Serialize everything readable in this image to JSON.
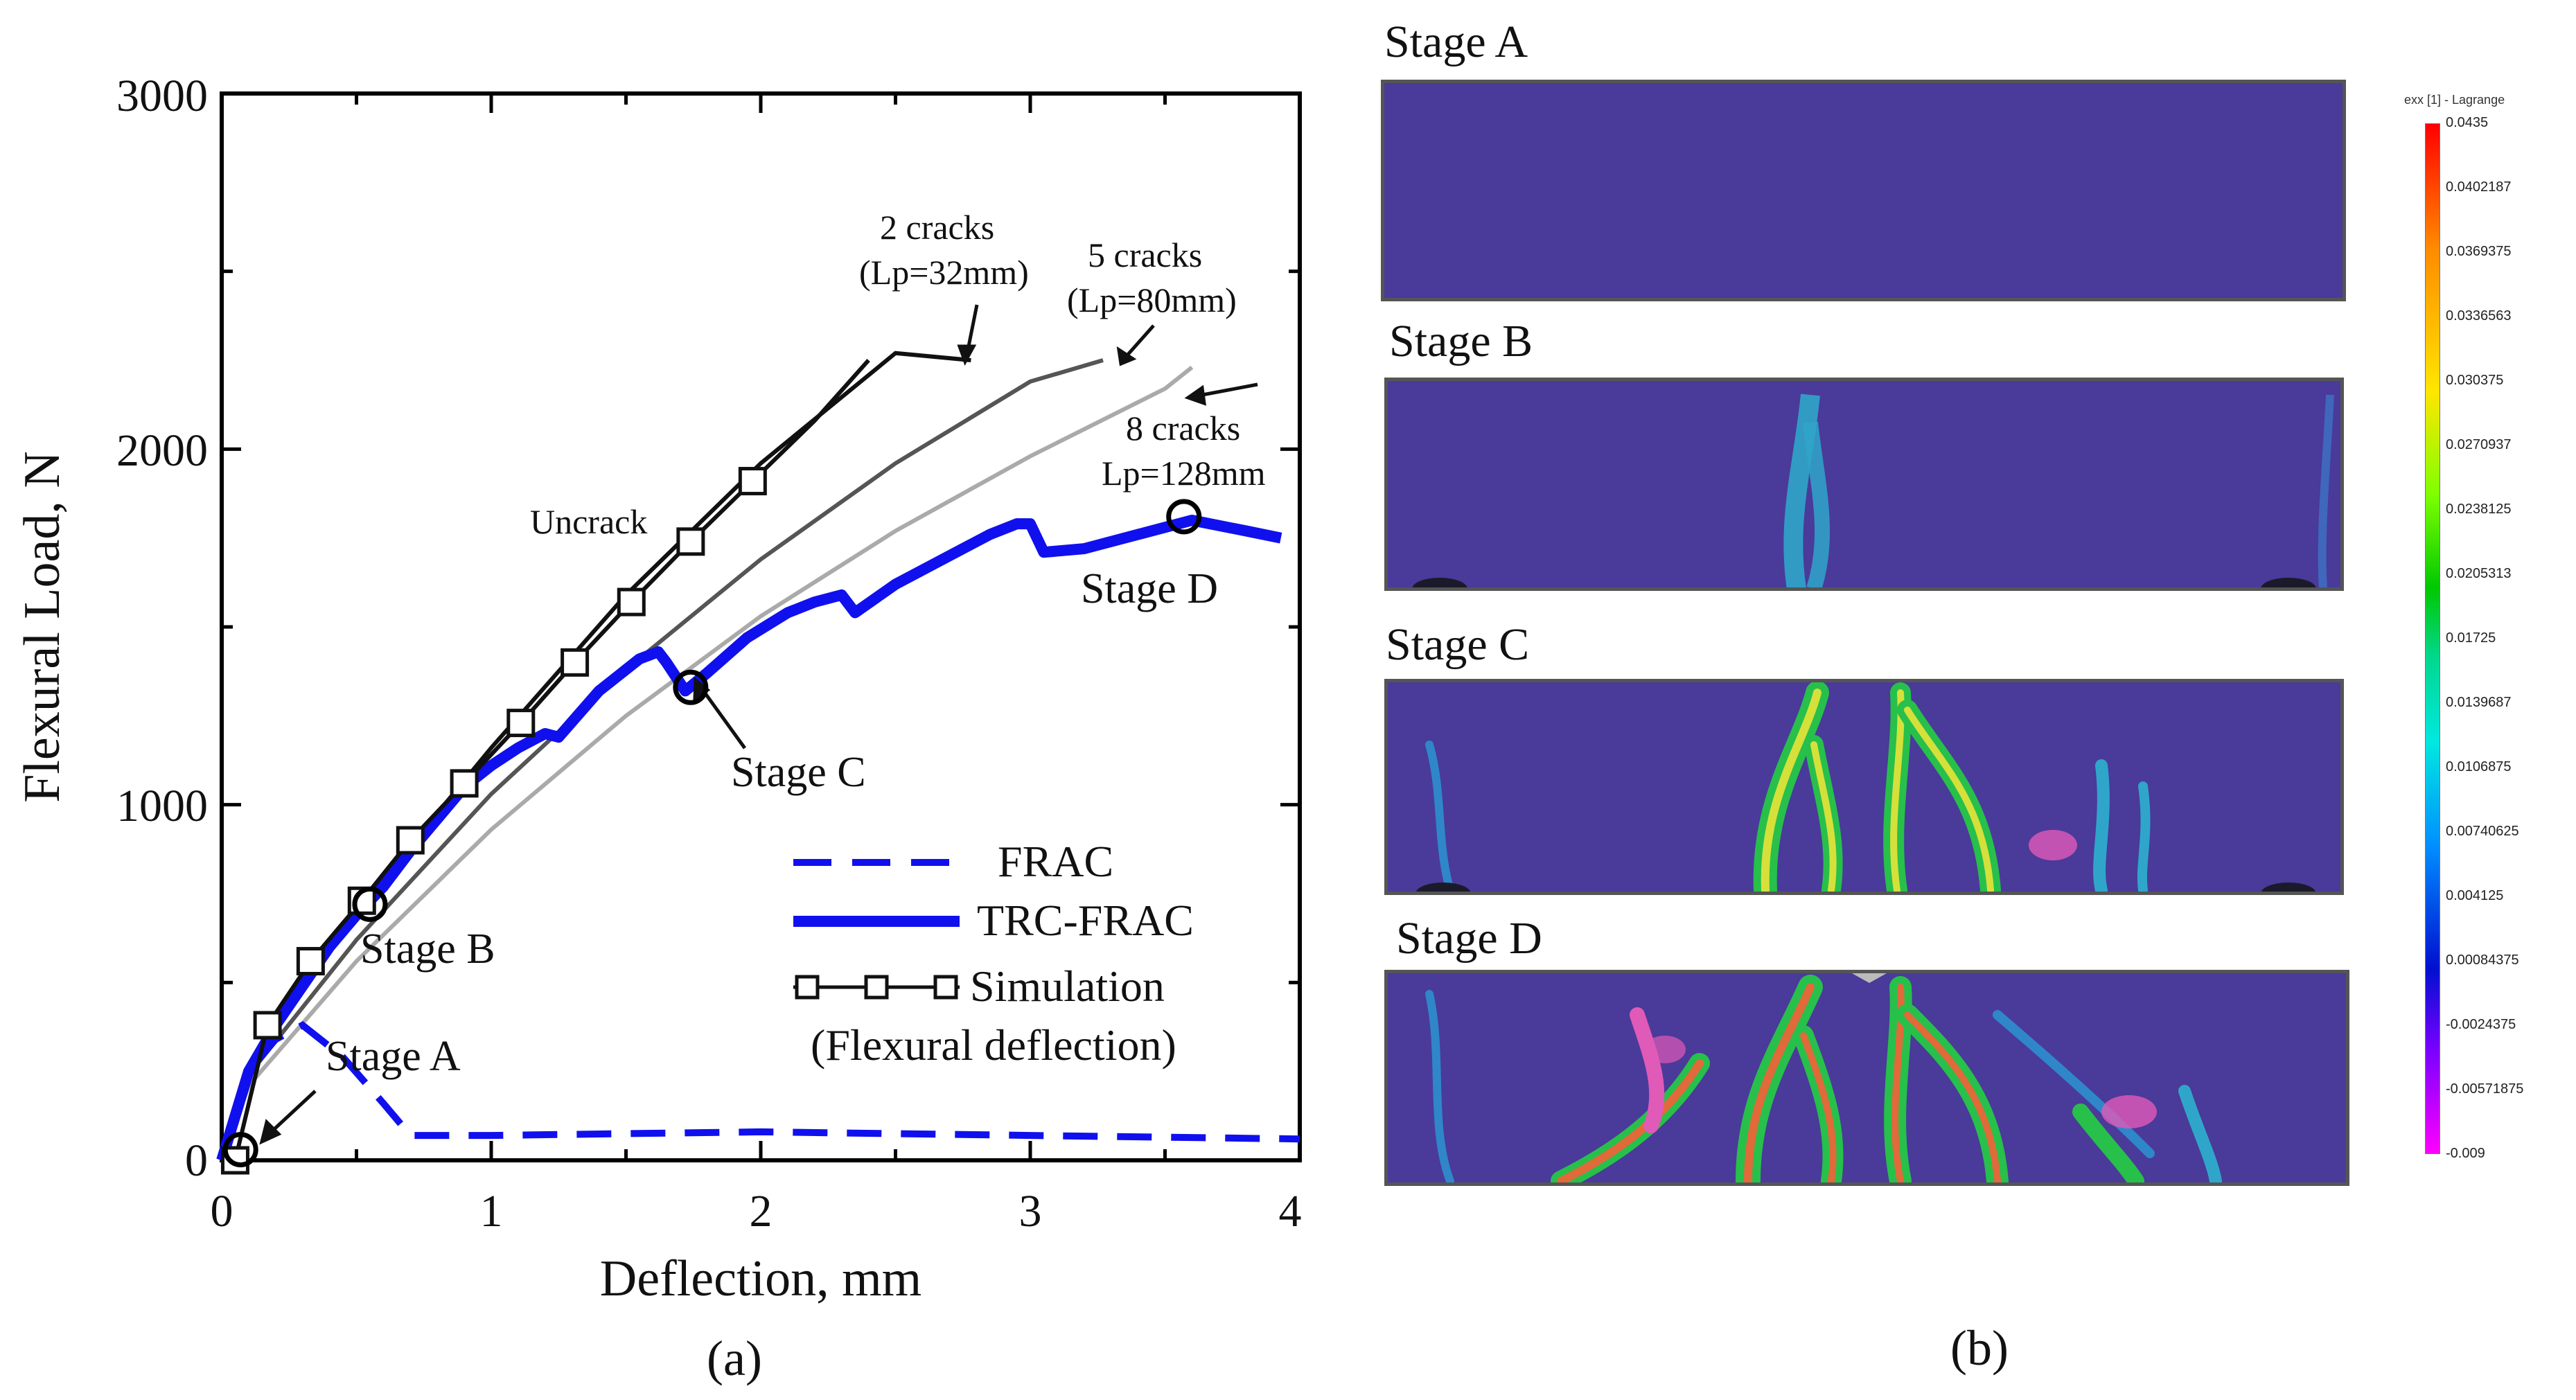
{
  "chart_data": {
    "type": "line",
    "xlabel": "Deflection, mm",
    "ylabel": "Flexural Load, N",
    "xlim": [
      0,
      4
    ],
    "ylim": [
      0,
      3000
    ],
    "x_ticks": [
      "0",
      "1",
      "2",
      "3",
      "4"
    ],
    "y_ticks": [
      "0",
      "1000",
      "2000",
      "3000"
    ],
    "series": [
      {
        "name": "FRAC",
        "style": "dashed",
        "color": "#1010ee",
        "x": [
          0,
          0.1,
          0.2,
          0.3,
          0.45,
          0.6,
          0.7,
          1.0,
          1.5,
          2.0,
          3.0,
          4.0
        ],
        "y": [
          0,
          250,
          340,
          380,
          290,
          160,
          70,
          70,
          75,
          80,
          70,
          60
        ]
      },
      {
        "name": "TRC-FRAC",
        "style": "solid-thick",
        "color": "#1010ee",
        "x": [
          0,
          0.1,
          0.2,
          0.3,
          0.4,
          0.5,
          0.6,
          0.7,
          0.8,
          0.9,
          1.0,
          1.1,
          1.2,
          1.25,
          1.4,
          1.55,
          1.62,
          1.65,
          1.72,
          1.8,
          1.95,
          2.1,
          2.2,
          2.3,
          2.35,
          2.5,
          2.7,
          2.85,
          2.95,
          3.0,
          3.05,
          3.2,
          3.4,
          3.6,
          3.8,
          3.93
        ],
        "y": [
          0,
          250,
          380,
          490,
          600,
          690,
          770,
          870,
          960,
          1050,
          1110,
          1160,
          1200,
          1190,
          1320,
          1410,
          1430,
          1400,
          1320,
          1370,
          1470,
          1540,
          1570,
          1590,
          1540,
          1620,
          1700,
          1760,
          1790,
          1790,
          1710,
          1720,
          1760,
          1800,
          1770,
          1750
        ]
      },
      {
        "name": "Simulation",
        "style": "line-square-markers",
        "color": "#111111",
        "x": [
          0.05,
          0.17,
          0.33,
          0.52,
          0.7,
          0.9,
          1.11,
          1.31,
          1.52,
          1.74,
          1.97,
          2.2,
          2.4
        ],
        "y": [
          0,
          380,
          560,
          730,
          900,
          1060,
          1230,
          1400,
          1570,
          1740,
          1910,
          2080,
          2250
        ],
        "marker_count": 11
      },
      {
        "name": "2 cracks (Lp=32mm)",
        "style": "reference",
        "color": "#111111",
        "x": [
          0,
          0.1,
          0.5,
          1.0,
          1.5,
          2.0,
          2.5,
          2.78
        ],
        "y": [
          0,
          260,
          700,
          1160,
          1590,
          1960,
          2270,
          2250
        ]
      },
      {
        "name": "5 cracks (Lp=80mm)",
        "style": "reference",
        "color": "#555555",
        "x": [
          0,
          0.1,
          0.5,
          1.0,
          1.5,
          2.0,
          2.5,
          3.0,
          3.27
        ],
        "y": [
          0,
          240,
          620,
          1030,
          1380,
          1690,
          1960,
          2190,
          2250
        ]
      },
      {
        "name": "8 cracks Lp=128mm",
        "style": "reference",
        "color": "#aaaaaa",
        "x": [
          0,
          0.1,
          0.5,
          1.0,
          1.5,
          2.0,
          2.5,
          3.0,
          3.5,
          3.6
        ],
        "y": [
          0,
          210,
          560,
          930,
          1250,
          1530,
          1770,
          1980,
          2170,
          2230
        ]
      }
    ],
    "stage_points": [
      {
        "name": "Stage A",
        "x": 0.07,
        "y": 30
      },
      {
        "name": "Stage B",
        "x": 0.55,
        "y": 720
      },
      {
        "name": "Stage C",
        "x": 1.74,
        "y": 1330
      },
      {
        "name": "Stage D",
        "x": 3.57,
        "y": 1810
      }
    ],
    "legend": [
      "FRAC",
      "TRC-FRAC",
      "Simulation",
      "(Flexural deflection)"
    ],
    "annotations": {
      "two_cracks": "2 cracks",
      "two_cracks_lp": "(Lp=32mm)",
      "five_cracks": "5 cracks",
      "five_cracks_lp": "(Lp=80mm)",
      "eight_cracks": "8 cracks",
      "eight_cracks_lp": "Lp=128mm",
      "uncrack": "Uncrack",
      "stage_a": "Stage A",
      "stage_b": "Stage B",
      "stage_c": "Stage C",
      "stage_d": "Stage D"
    },
    "sublabel": "(a)"
  },
  "dic": {
    "stages": [
      "Stage A",
      "Stage B",
      "Stage C",
      "Stage D"
    ],
    "colorbar_title": "exx [1] - Lagrange",
    "colorbar_ticks": [
      "0.0435",
      "0.0402187",
      "0.0369375",
      "0.0336563",
      "0.030375",
      "0.0270937",
      "0.0238125",
      "0.0205313",
      "0.01725",
      "0.0139687",
      "0.0106875",
      "0.00740625",
      "0.004125",
      "0.00084375",
      "-0.0024375",
      "-0.00571875",
      "-0.009"
    ],
    "sublabel": "(b)"
  }
}
